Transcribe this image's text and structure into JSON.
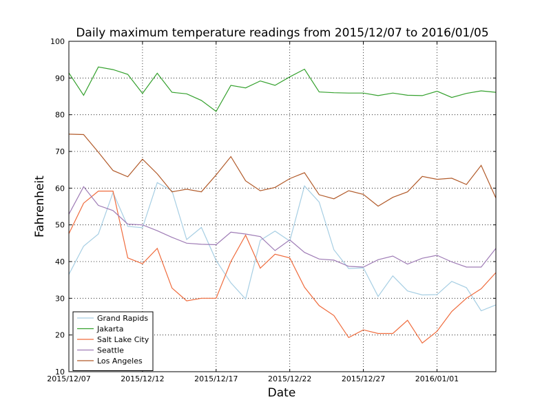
{
  "chart_data": {
    "type": "line",
    "title": "Daily maximum temperature readings from 2015/12/07 to 2016/01/05",
    "xlabel": "Date",
    "ylabel": "Fahrenheit",
    "ylim": [
      10,
      100
    ],
    "yticks": [
      10,
      20,
      30,
      40,
      50,
      60,
      70,
      80,
      90,
      100
    ],
    "xlim": [
      "2015/12/07",
      "2016/01/05"
    ],
    "xticks": [
      "2015/12/07",
      "2015/12/12",
      "2015/12/17",
      "2015/12/22",
      "2015/12/27",
      "2016/01/01"
    ],
    "grid": true,
    "legend_position": "lower-left",
    "x": [
      "2015/12/07",
      "2015/12/08",
      "2015/12/09",
      "2015/12/10",
      "2015/12/11",
      "2015/12/12",
      "2015/12/13",
      "2015/12/14",
      "2015/12/15",
      "2015/12/16",
      "2015/12/17",
      "2015/12/18",
      "2015/12/19",
      "2015/12/20",
      "2015/12/21",
      "2015/12/22",
      "2015/12/23",
      "2015/12/24",
      "2015/12/25",
      "2015/12/26",
      "2015/12/27",
      "2015/12/28",
      "2015/12/29",
      "2015/12/30",
      "2015/12/31",
      "2016/01/01",
      "2016/01/02",
      "2016/01/03",
      "2016/01/04",
      "2016/01/05"
    ],
    "series": [
      {
        "name": "Grand Rapids",
        "color": "#a6cee3",
        "values": [
          36.5,
          44.2,
          47.5,
          58.8,
          49.6,
          49.2,
          61.5,
          59.3,
          46.0,
          49.3,
          40.3,
          34.2,
          29.8,
          45.8,
          48.3,
          45.6,
          60.6,
          56.2,
          43.2,
          38.1,
          38.3,
          30.5,
          36.1,
          32.0,
          30.9,
          31.0,
          34.6,
          32.9,
          26.6,
          28.2
        ]
      },
      {
        "name": "Jakarta",
        "color": "#33a02c",
        "values": [
          91.4,
          85.3,
          93.0,
          92.3,
          91.0,
          85.8,
          91.3,
          86.1,
          85.7,
          83.9,
          80.9,
          88.0,
          87.3,
          89.2,
          88.0,
          90.3,
          92.4,
          86.2,
          86.0,
          85.9,
          85.9,
          85.2,
          85.9,
          85.3,
          85.2,
          86.4,
          84.7,
          85.8,
          86.5,
          86.1
        ]
      },
      {
        "name": "Salt Lake City",
        "color": "#ef6a3b",
        "values": [
          47.6,
          55.9,
          59.2,
          59.2,
          41.0,
          39.4,
          43.6,
          32.8,
          29.3,
          30.0,
          30.0,
          40.0,
          47.2,
          38.2,
          42.0,
          41.0,
          33.0,
          28.0,
          25.3,
          19.3,
          21.4,
          20.4,
          20.4,
          24.0,
          17.8,
          21.0,
          26.4,
          30.0,
          32.6,
          37.0
        ]
      },
      {
        "name": "Seattle",
        "color": "#9e7bb5",
        "values": [
          52.9,
          60.4,
          55.3,
          53.9,
          50.2,
          50.0,
          48.4,
          46.6,
          45.0,
          44.7,
          44.6,
          48.0,
          47.5,
          46.8,
          43.0,
          45.9,
          42.5,
          40.7,
          40.4,
          38.7,
          38.5,
          40.5,
          41.5,
          39.3,
          40.9,
          41.7,
          39.9,
          38.5,
          38.5,
          43.6
        ]
      },
      {
        "name": "Los Angeles",
        "color": "#b15928",
        "values": [
          74.7,
          74.6,
          69.8,
          64.8,
          63.1,
          67.9,
          63.9,
          59.0,
          59.7,
          59.0,
          63.6,
          68.6,
          62.0,
          59.3,
          60.2,
          62.6,
          64.2,
          58.2,
          57.1,
          59.3,
          58.3,
          55.1,
          57.5,
          59.0,
          63.2,
          62.4,
          62.7,
          61.0,
          66.2,
          57.3
        ]
      }
    ]
  }
}
